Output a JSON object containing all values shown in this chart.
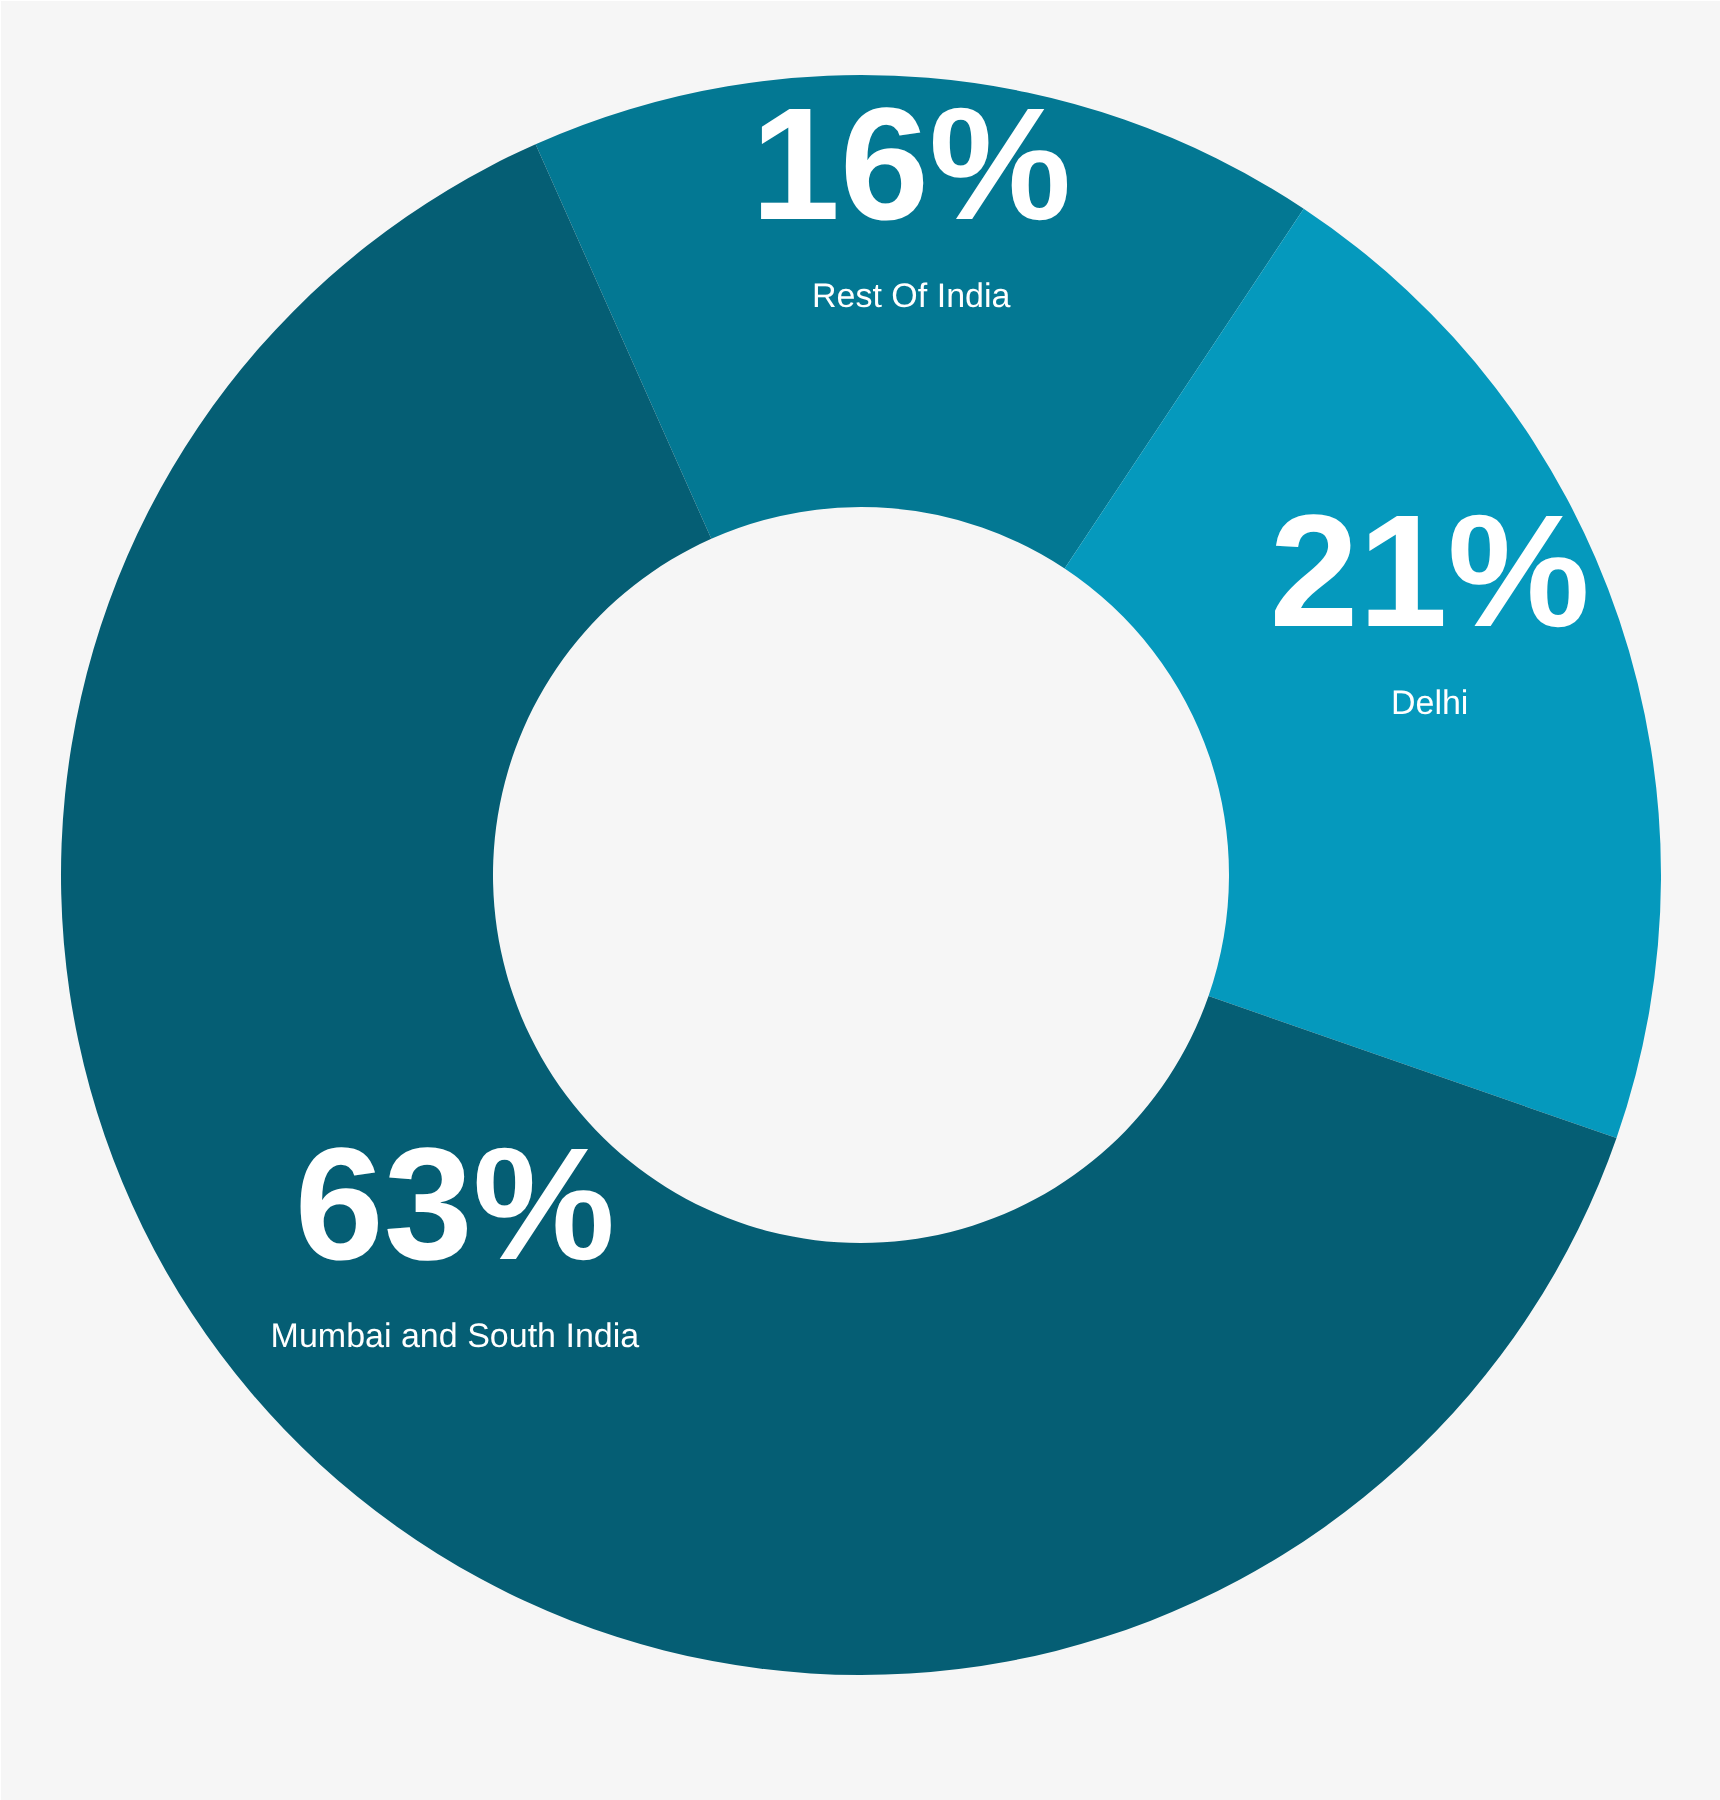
{
  "chart_data": {
    "type": "donut",
    "categories": [
      "Rest Of India",
      "Delhi",
      "Mumbai and South India"
    ],
    "values": [
      16,
      21,
      63
    ],
    "value_labels": [
      "16%",
      "21%",
      "63%"
    ],
    "colors": [
      "#037893",
      "#0599bd",
      "#055e74"
    ]
  }
}
